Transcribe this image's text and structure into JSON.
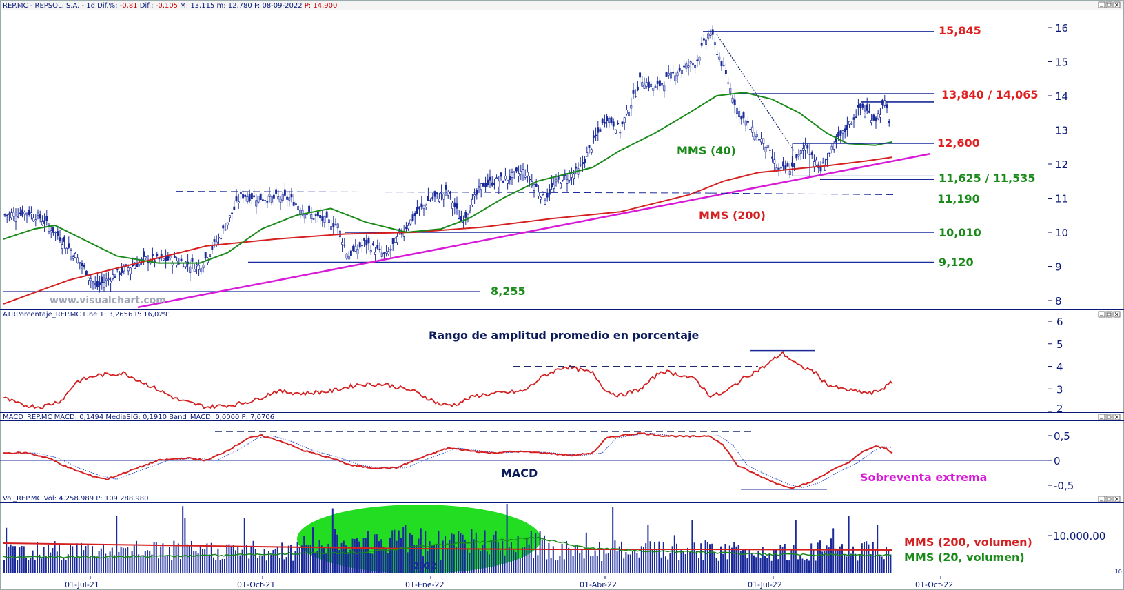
{
  "panels": {
    "price": {
      "header_parts": [
        {
          "text": "REP.MC - REPSOL, S.A. - 1d Dif.%:",
          "color": "#0a1a7a"
        },
        {
          "text": "-0,81",
          "color": "#cc0000"
        },
        {
          "text": "Dif.:",
          "color": "#0a1a7a"
        },
        {
          "text": "-0,105",
          "color": "#cc0000"
        },
        {
          "text": "M: 13,115 m: 12,780 F: 08-09-2022",
          "color": "#0a1a7a"
        },
        {
          "text": "P: 14,900",
          "color": "#cc0000"
        }
      ],
      "watermark": "www.visualchart.com",
      "y_ticks": [
        "16",
        "15",
        "14",
        "13",
        "12",
        "11",
        "10",
        "9",
        "8"
      ]
    },
    "atr": {
      "header": "ATRPorcentaje_REP.MC Line 1: 3,2656 P: 16,0291",
      "title": "Rango de amplitud promedio en porcentaje",
      "y_ticks": [
        "6",
        "5",
        "4",
        "3",
        "2"
      ]
    },
    "macd": {
      "header": "MACD_REP.MC MACD: 0,1494 MediaSIG: 0,1910 Band_MACD: 0,0000 P: 7,0706",
      "label": "MACD",
      "annotation": "Sobreventa extrema",
      "y_ticks": [
        "0,5",
        "0",
        "-0,5"
      ]
    },
    "volume": {
      "header": "Vol_REP.MC Vol: 4.258.989 P: 109.288.980",
      "y_tick": "10.000.00",
      "ma200_label": "MMS (200, volumen)",
      "ma20_label": "MMS (20, volumen)",
      "year_marker": "2022"
    }
  },
  "x_axis": [
    "01-Jul-21",
    "01-Oct-21",
    "01-Ene-22",
    "01-Abr-22",
    "01-Jul-22",
    "01-Oct-22"
  ],
  "levels": [
    {
      "label": "15,845",
      "color": "#e02020"
    },
    {
      "label": "13,840 / 14,065",
      "color": "#e02020"
    },
    {
      "label": "12,600",
      "color": "#e02020"
    },
    {
      "label": "11,625 / 11,535",
      "color": "#1a8a1a"
    },
    {
      "label": "11,190",
      "color": "#1a8a1a"
    },
    {
      "label": "10,010",
      "color": "#1a8a1a"
    },
    {
      "label": "9,120",
      "color": "#1a8a1a"
    },
    {
      "label": "8,255",
      "color": "#1a8a1a"
    }
  ],
  "annotations": {
    "mms40": "MMS (40)",
    "mms200": "MMS (200)"
  },
  "colors": {
    "price": "#1a2a9a",
    "ma40": "#1a8a1a",
    "ma200": "#d42020",
    "trend": "#d81ad8",
    "axis": "#0a1a7a",
    "volume_highlight": "#22dd22"
  },
  "chart_data": [
    {
      "type": "line",
      "title": "REP.MC - REPSOL, S.A. - 1d",
      "series": [
        {
          "name": "MMS (40)",
          "values": [
            10.2,
            8.9,
            9.2,
            10.8,
            10.6,
            9.9,
            10.4,
            11.6,
            12.7,
            14.0,
            13.8,
            12.6
          ]
        },
        {
          "name": "MMS (200)",
          "values": [
            7.9,
            8.7,
            9.3,
            9.8,
            9.95,
            10.2,
            10.45,
            10.9,
            11.4,
            11.9,
            12.0,
            12.15
          ]
        }
      ],
      "close_points": [
        10.5,
        8.7,
        9.6,
        11.2,
        10.0,
        9.4,
        10.7,
        12.5,
        15.8,
        11.8,
        13.8,
        12.8
      ],
      "horizontal_levels": [
        15.845,
        13.84,
        14.065,
        12.6,
        11.625,
        11.535,
        11.19,
        10.01,
        9.12,
        8.255
      ],
      "ylim": [
        7.8,
        16.5
      ]
    },
    {
      "type": "line",
      "title": "ATRPorcentaje_REP.MC",
      "values": [
        2.6,
        3.7,
        2.2,
        3.1,
        2.6,
        2.5,
        4.0,
        2.6,
        3.9,
        4.6,
        2.8,
        3.3
      ],
      "ylim": [
        2,
        6
      ]
    },
    {
      "type": "line",
      "title": "MACD_REP.MC",
      "series": [
        {
          "name": "MACD",
          "values": [
            0.15,
            -0.35,
            0.05,
            0.5,
            -0.2,
            -0.1,
            0.2,
            0.1,
            0.55,
            0.5,
            -0.55,
            0.15
          ]
        }
      ],
      "ylim": [
        -0.7,
        0.7
      ]
    },
    {
      "type": "bar",
      "title": "Vol_REP.MC",
      "ylabel": "Vol"
    }
  ]
}
